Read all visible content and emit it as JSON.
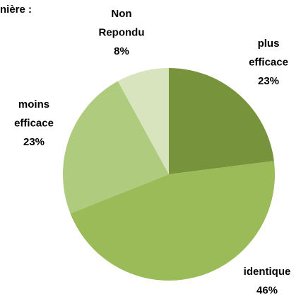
{
  "chart_data": {
    "type": "pie",
    "title": "nière :",
    "categories": [
      "plus efficace",
      "identique",
      "moins efficace",
      "Non Repondu"
    ],
    "values": [
      23,
      46,
      23,
      8
    ],
    "value_labels": [
      "23%",
      "46%",
      "23%",
      "8%"
    ],
    "colors": [
      "#77933c",
      "#9bbb59",
      "#aecb7e",
      "#d7e4bd"
    ]
  }
}
